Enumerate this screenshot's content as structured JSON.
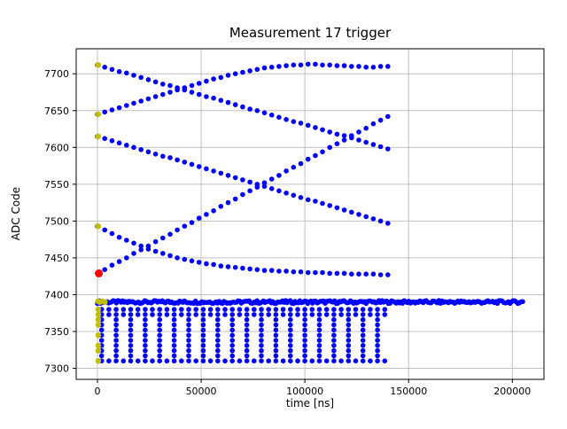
{
  "chart_data": {
    "type": "scatter",
    "title": "Measurement 17 trigger",
    "xlabel": "time [ns]",
    "ylabel": "ADC Code",
    "xlim": [
      -10250,
      215250
    ],
    "ylim": [
      7285,
      7734
    ],
    "xticks": [
      0,
      50000,
      100000,
      150000,
      200000
    ],
    "xtick_labels": [
      "0",
      "50000",
      "100000",
      "150000",
      "200000"
    ],
    "yticks": [
      7300,
      7350,
      7400,
      7450,
      7500,
      7550,
      7600,
      7650,
      7700
    ],
    "ytick_labels": [
      "7300",
      "7350",
      "7400",
      "7450",
      "7500",
      "7550",
      "7600",
      "7650",
      "7700"
    ],
    "grid": true,
    "legend": "none",
    "colors": {
      "samples": "#0000ff",
      "first_samples": "#bfbf00",
      "trigger": "#ff0000",
      "grid": "#c0c0c0",
      "spine": "#000000"
    },
    "series": [
      {
        "name": "trace-upper-descending",
        "color": "#0000ff",
        "size": 2.8,
        "x_start": 0,
        "x_step": 3500,
        "y": [
          7712,
          7709,
          7706,
          7703,
          7701,
          7698,
          7695,
          7692,
          7689,
          7686,
          7684,
          7681,
          7678,
          7675,
          7672,
          7669,
          7667,
          7664,
          7661,
          7658,
          7655,
          7652,
          7650,
          7647,
          7644,
          7641,
          7638,
          7635,
          7633,
          7630,
          7627,
          7624,
          7621,
          7618,
          7616,
          7613,
          7610,
          7607,
          7604,
          7601,
          7598
        ]
      },
      {
        "name": "trace-upper-ascending",
        "color": "#0000ff",
        "size": 2.8,
        "x_start": 0,
        "x_step": 3500,
        "y": [
          7645,
          7648,
          7651,
          7654,
          7657,
          7660,
          7663,
          7666,
          7669,
          7672,
          7675,
          7678,
          7681,
          7684,
          7687,
          7690,
          7693,
          7695,
          7698,
          7700,
          7702,
          7704,
          7706,
          7708,
          7709,
          7710,
          7711,
          7712,
          7712,
          7713,
          7713,
          7712,
          7712,
          7711,
          7711,
          7710,
          7710,
          7709,
          7709,
          7710,
          7710
        ]
      },
      {
        "name": "trace-mid-descending",
        "color": "#0000ff",
        "size": 2.8,
        "x_start": 0,
        "x_step": 3500,
        "y": [
          7615,
          7612,
          7609,
          7606,
          7603,
          7600,
          7597,
          7594,
          7591,
          7588,
          7586,
          7583,
          7580,
          7577,
          7574,
          7571,
          7568,
          7565,
          7562,
          7559,
          7556,
          7553,
          7550,
          7547,
          7544,
          7541,
          7538,
          7535,
          7532,
          7529,
          7527,
          7524,
          7521,
          7518,
          7515,
          7512,
          7509,
          7506,
          7503,
          7500,
          7497
        ]
      },
      {
        "name": "trace-rising-from-trigger",
        "color": "#0000ff",
        "size": 2.8,
        "x_start": 0,
        "x_step": 3500,
        "y": [
          7429,
          7434,
          7440,
          7445,
          7450,
          7456,
          7461,
          7466,
          7472,
          7477,
          7482,
          7488,
          7493,
          7498,
          7504,
          7509,
          7514,
          7520,
          7525,
          7530,
          7536,
          7541,
          7546,
          7552,
          7557,
          7562,
          7568,
          7573,
          7578,
          7584,
          7589,
          7594,
          7600,
          7605,
          7610,
          7616,
          7621,
          7626,
          7632,
          7637,
          7642
        ]
      },
      {
        "name": "trace-settling",
        "color": "#0000ff",
        "size": 2.8,
        "x_start": 0,
        "x_step": 3500,
        "y": [
          7493,
          7488,
          7483,
          7478,
          7474,
          7470,
          7466,
          7462,
          7459,
          7456,
          7453,
          7450,
          7448,
          7446,
          7444,
          7442,
          7441,
          7439,
          7438,
          7437,
          7436,
          7435,
          7434,
          7433,
          7433,
          7432,
          7432,
          7431,
          7431,
          7430,
          7430,
          7430,
          7429,
          7429,
          7429,
          7428,
          7428,
          7428,
          7428,
          7427,
          7427
        ]
      },
      {
        "name": "baseline-band",
        "color": "#0000ff",
        "size": 2.8,
        "band": {
          "y": 7390,
          "y_jitter": 2,
          "x_start": 0,
          "x_end": 205000,
          "count": 270
        }
      },
      {
        "name": "lower-rows",
        "color": "#0000ff",
        "size": 2.8,
        "rows": [
          {
            "y": 7380,
            "x_start": 2000,
            "x_end": 140000,
            "x_step": 3500
          },
          {
            "y": 7373,
            "x_start": 2000,
            "x_end": 140000,
            "x_step": 3500
          },
          {
            "y": 7366,
            "x_start": 2000,
            "x_end": 140000,
            "x_step": 7000
          },
          {
            "y": 7359,
            "x_start": 2000,
            "x_end": 140000,
            "x_step": 7000
          },
          {
            "y": 7352,
            "x_start": 2000,
            "x_end": 140000,
            "x_step": 7000
          },
          {
            "y": 7345,
            "x_start": 2000,
            "x_end": 140000,
            "x_step": 7000
          },
          {
            "y": 7338,
            "x_start": 2000,
            "x_end": 140000,
            "x_step": 7000
          },
          {
            "y": 7331,
            "x_start": 2000,
            "x_end": 140000,
            "x_step": 7000
          },
          {
            "y": 7324,
            "x_start": 2000,
            "x_end": 140000,
            "x_step": 7000
          },
          {
            "y": 7317,
            "x_start": 2000,
            "x_end": 140000,
            "x_step": 7000
          },
          {
            "y": 7310,
            "x_start": 2000,
            "x_end": 140000,
            "x_step": 3500
          }
        ]
      },
      {
        "name": "first-samples",
        "color": "#bfbf00",
        "size": 3.2,
        "points": [
          [
            400,
            7712
          ],
          [
            400,
            7645
          ],
          [
            400,
            7615
          ],
          [
            400,
            7493
          ],
          [
            200,
            7391
          ],
          [
            1100,
            7390
          ],
          [
            2300,
            7391
          ],
          [
            3600,
            7390
          ],
          [
            400,
            7380
          ],
          [
            400,
            7373
          ],
          [
            400,
            7366
          ],
          [
            400,
            7359
          ],
          [
            400,
            7345
          ],
          [
            400,
            7331
          ],
          [
            400,
            7324
          ],
          [
            400,
            7310
          ]
        ]
      },
      {
        "name": "trigger-sample",
        "color": "#ff0000",
        "size": 4.5,
        "points": [
          [
            700,
            7429
          ]
        ]
      }
    ]
  }
}
